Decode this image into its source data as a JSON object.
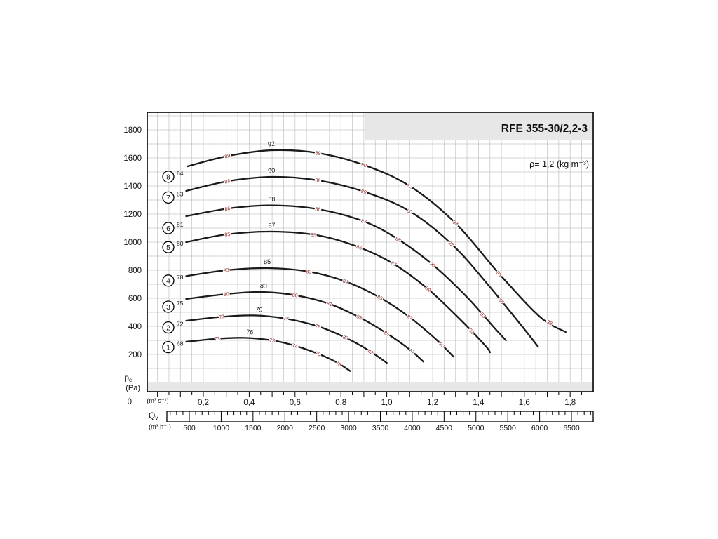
{
  "chart_data": {
    "type": "line",
    "title": "RFE 355-30/2,2-3",
    "annotation": "ρ= 1,2 (kg m⁻³)",
    "grid": true,
    "colors": {
      "curve": "#1a1a1a",
      "grid": "#c6c6c6",
      "band": "#e7e7e7",
      "red_label": "#8b2a2a",
      "black_label": "#111111"
    },
    "y_axis": {
      "label_main": "p",
      "label_sub": "c",
      "unit": "(Pa)",
      "zero_label": "0",
      "ticks": [
        200,
        400,
        600,
        800,
        1000,
        1200,
        1400,
        1600,
        1800
      ],
      "range": [
        0,
        1925
      ]
    },
    "x_axis_ms": {
      "unit": "(m³ s⁻¹)",
      "tick_values": [
        0.2,
        0.4,
        0.6,
        0.8,
        1.0,
        1.2,
        1.4,
        1.6,
        1.8
      ],
      "tick_labels": [
        "0,2",
        "0,4",
        "0,6",
        "0,8",
        "1,0",
        "1,2",
        "1,4",
        "1,6",
        "1,8"
      ],
      "range": [
        0,
        1.9
      ]
    },
    "x_axis_m3h": {
      "label_main": "Q",
      "label_sub": "v",
      "unit": "(m³ h⁻¹)",
      "tick_values": [
        500,
        1000,
        1500,
        2000,
        2500,
        3000,
        3500,
        4000,
        4500,
        5000,
        5500,
        6000,
        6500
      ],
      "conversion_to_ms": 3600
    },
    "curves": [
      {
        "id": "8",
        "start_db": "84",
        "circle_p": 1466,
        "points": [
          [
            0.13,
            1540
          ],
          [
            0.31,
            1615
          ],
          [
            0.5,
            1655
          ],
          [
            0.7,
            1635
          ],
          [
            0.9,
            1550
          ],
          [
            1.1,
            1400
          ],
          [
            1.3,
            1135
          ],
          [
            1.49,
            775
          ],
          [
            1.67,
            465
          ],
          [
            1.78,
            360
          ]
        ],
        "labels": [
          {
            "x": 0.5,
            "text": "92",
            "color": "black"
          },
          {
            "x": 0.305,
            "text": "89",
            "color": "red"
          },
          {
            "x": 0.7,
            "text": "89",
            "color": "red"
          },
          {
            "x": 0.9,
            "text": "90",
            "color": "red"
          },
          {
            "x": 1.1,
            "text": "92",
            "color": "red"
          },
          {
            "x": 1.3,
            "text": "94",
            "color": "red"
          },
          {
            "x": 1.49,
            "text": "96",
            "color": "red"
          },
          {
            "x": 1.71,
            "text": "98",
            "color": "red"
          }
        ]
      },
      {
        "id": "7",
        "start_db": "83",
        "circle_p": 1318,
        "points": [
          [
            0.125,
            1365
          ],
          [
            0.31,
            1435
          ],
          [
            0.5,
            1465
          ],
          [
            0.7,
            1440
          ],
          [
            0.9,
            1360
          ],
          [
            1.1,
            1220
          ],
          [
            1.29,
            975
          ],
          [
            1.45,
            680
          ],
          [
            1.6,
            380
          ],
          [
            1.66,
            255
          ]
        ],
        "labels": [
          {
            "x": 0.5,
            "text": "90",
            "color": "black"
          },
          {
            "x": 0.305,
            "text": "88",
            "color": "red"
          },
          {
            "x": 0.7,
            "text": "88",
            "color": "red"
          },
          {
            "x": 0.9,
            "text": "89",
            "color": "red"
          },
          {
            "x": 1.1,
            "text": "90",
            "color": "red"
          },
          {
            "x": 1.28,
            "text": "92",
            "color": "red"
          },
          {
            "x": 1.5,
            "text": "95",
            "color": "red"
          }
        ]
      },
      {
        "id": "6",
        "start_db": "81",
        "circle_p": 1100,
        "points": [
          [
            0.125,
            1185
          ],
          [
            0.31,
            1240
          ],
          [
            0.5,
            1262
          ],
          [
            0.7,
            1235
          ],
          [
            0.9,
            1148
          ],
          [
            1.05,
            1020
          ],
          [
            1.2,
            840
          ],
          [
            1.35,
            608
          ],
          [
            1.47,
            388
          ],
          [
            1.52,
            300
          ]
        ],
        "labels": [
          {
            "x": 0.5,
            "text": "88",
            "color": "black"
          },
          {
            "x": 0.305,
            "text": "86",
            "color": "red"
          },
          {
            "x": 0.7,
            "text": "86",
            "color": "red"
          },
          {
            "x": 0.9,
            "text": "87",
            "color": "red"
          },
          {
            "x": 1.05,
            "text": "88",
            "color": "red"
          },
          {
            "x": 1.2,
            "text": "90",
            "color": "red"
          },
          {
            "x": 1.42,
            "text": "93",
            "color": "red"
          }
        ]
      },
      {
        "id": "5",
        "start_db": "80",
        "circle_p": 964,
        "points": [
          [
            0.125,
            1000
          ],
          [
            0.3,
            1055
          ],
          [
            0.5,
            1075
          ],
          [
            0.7,
            1048
          ],
          [
            0.88,
            963
          ],
          [
            1.03,
            845
          ],
          [
            1.18,
            665
          ],
          [
            1.32,
            450
          ],
          [
            1.43,
            262
          ],
          [
            1.45,
            215
          ]
        ],
        "labels": [
          {
            "x": 0.5,
            "text": "87",
            "color": "black"
          },
          {
            "x": 0.305,
            "text": "85",
            "color": "red"
          },
          {
            "x": 0.68,
            "text": "85",
            "color": "red"
          },
          {
            "x": 0.88,
            "text": "86",
            "color": "red"
          },
          {
            "x": 1.03,
            "text": "87",
            "color": "red"
          },
          {
            "x": 1.18,
            "text": "89",
            "color": "red"
          },
          {
            "x": 1.37,
            "text": "92",
            "color": "red"
          }
        ]
      },
      {
        "id": "4",
        "start_db": "78",
        "circle_p": 726,
        "points": [
          [
            0.125,
            758
          ],
          [
            0.3,
            800
          ],
          [
            0.48,
            815
          ],
          [
            0.66,
            790
          ],
          [
            0.82,
            720
          ],
          [
            0.97,
            605
          ],
          [
            1.1,
            465
          ],
          [
            1.22,
            300
          ],
          [
            1.29,
            185
          ]
        ],
        "labels": [
          {
            "x": 0.48,
            "text": "85",
            "color": "black"
          },
          {
            "x": 0.3,
            "text": "83",
            "color": "red"
          },
          {
            "x": 0.66,
            "text": "83",
            "color": "red"
          },
          {
            "x": 0.82,
            "text": "84",
            "color": "red"
          },
          {
            "x": 0.97,
            "text": "85",
            "color": "red"
          },
          {
            "x": 1.1,
            "text": "87",
            "color": "red"
          },
          {
            "x": 1.24,
            "text": "90",
            "color": "red"
          }
        ]
      },
      {
        "id": "3",
        "start_db": "75",
        "circle_p": 540,
        "points": [
          [
            0.125,
            595
          ],
          [
            0.3,
            630
          ],
          [
            0.45,
            645
          ],
          [
            0.6,
            622
          ],
          [
            0.75,
            560
          ],
          [
            0.88,
            465
          ],
          [
            1.0,
            350
          ],
          [
            1.1,
            235
          ],
          [
            1.16,
            148
          ]
        ],
        "labels": [
          {
            "x": 0.46,
            "text": "83",
            "color": "black"
          },
          {
            "x": 0.3,
            "text": "80",
            "color": "red"
          },
          {
            "x": 0.6,
            "text": "80",
            "color": "red"
          },
          {
            "x": 0.75,
            "text": "81",
            "color": "red"
          },
          {
            "x": 0.88,
            "text": "83",
            "color": "red"
          },
          {
            "x": 1.0,
            "text": "85",
            "color": "red"
          },
          {
            "x": 1.11,
            "text": "87",
            "color": "red"
          }
        ]
      },
      {
        "id": "2",
        "start_db": "72",
        "circle_p": 392,
        "points": [
          [
            0.125,
            440
          ],
          [
            0.28,
            468
          ],
          [
            0.42,
            478
          ],
          [
            0.56,
            455
          ],
          [
            0.7,
            400
          ],
          [
            0.82,
            320
          ],
          [
            0.92,
            230
          ],
          [
            1.0,
            140
          ]
        ],
        "labels": [
          {
            "x": 0.44,
            "text": "79",
            "color": "black"
          },
          {
            "x": 0.28,
            "text": "77",
            "color": "red"
          },
          {
            "x": 0.56,
            "text": "77",
            "color": "red"
          },
          {
            "x": 0.7,
            "text": "78",
            "color": "red"
          },
          {
            "x": 0.82,
            "text": "80",
            "color": "red"
          },
          {
            "x": 0.93,
            "text": "82",
            "color": "red"
          }
        ]
      },
      {
        "id": "1",
        "start_db": "68",
        "circle_p": 252,
        "points": [
          [
            0.125,
            290
          ],
          [
            0.26,
            312
          ],
          [
            0.38,
            318
          ],
          [
            0.5,
            300
          ],
          [
            0.6,
            262
          ],
          [
            0.7,
            205
          ],
          [
            0.78,
            145
          ],
          [
            0.84,
            82
          ]
        ],
        "labels": [
          {
            "x": 0.4,
            "text": "76",
            "color": "black"
          },
          {
            "x": 0.26,
            "text": "73",
            "color": "red"
          },
          {
            "x": 0.5,
            "text": "73",
            "color": "red"
          },
          {
            "x": 0.6,
            "text": "74",
            "color": "red"
          },
          {
            "x": 0.7,
            "text": "76",
            "color": "red"
          },
          {
            "x": 0.79,
            "text": "78",
            "color": "red"
          }
        ]
      }
    ]
  }
}
